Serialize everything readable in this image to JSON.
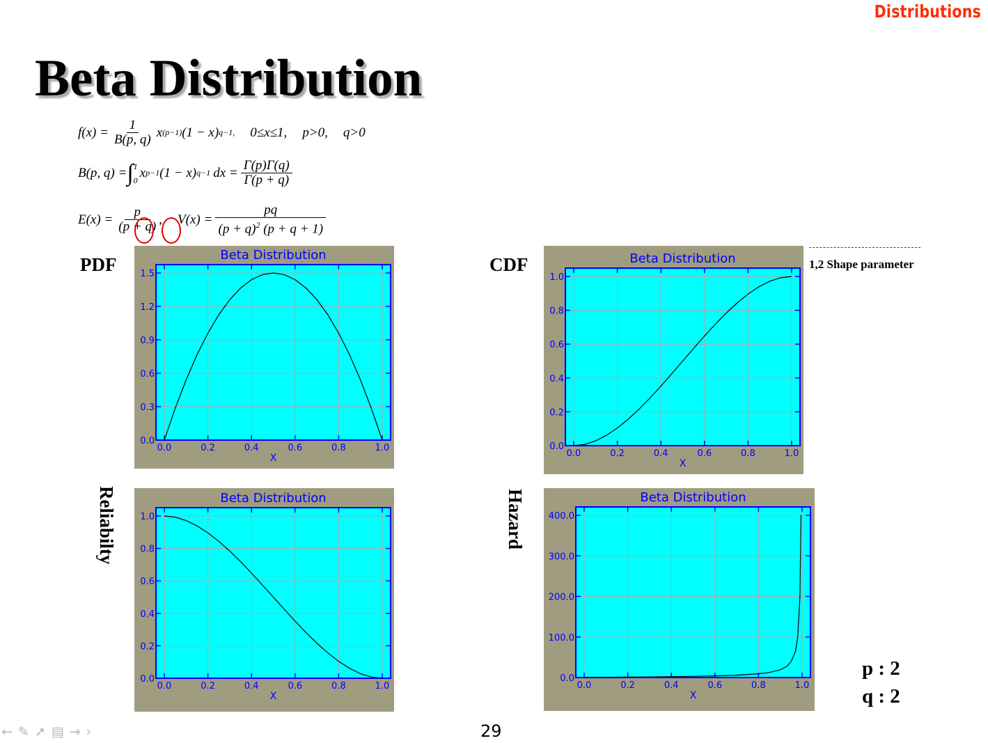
{
  "header": {
    "tag": "Distributions"
  },
  "slide": {
    "title": "Beta Distribution",
    "page_number": "29",
    "shape_note": "1,2 Shape parameter",
    "params": {
      "p": "p : 2",
      "q": "q : 2"
    },
    "nav_icons": [
      "arrow-left-icon",
      "pen-icon",
      "pointer-icon",
      "page-icon",
      "arrow-right-icon",
      "chevron-right-icon"
    ]
  },
  "formulas": {
    "f_lhs": "f(x) =",
    "f_num": "1",
    "f_den": "B(p, q)",
    "f_body": "x",
    "f_exp1": "(p−1)",
    "f_mid": "(1 − x)",
    "f_exp2": "q−1,",
    "f_cond1": "0≤x≤1,",
    "f_cond2": "p>0,",
    "f_cond3": "q>0",
    "b_lhs": "B(p, q) =",
    "b_int": "∫",
    "b_upper": "1",
    "b_lower": "0",
    "b_x": "x",
    "b_exp1": "p−1",
    "b_mid": "(1 − x)",
    "b_exp2": "q−1",
    "b_dx": "dx =",
    "b_num": "Γ(p)Γ(q)",
    "b_den": "Γ(p + q)",
    "e_lhs": "E(x) =",
    "e_num": "p",
    "e_den": "(p + q)",
    "e_comma": ",",
    "v_lhs": "V(x) =",
    "v_num": "pq",
    "v_den_a": "(p + q)",
    "v_den_exp": "2",
    "v_den_b": "(p + q + 1)"
  },
  "chart_labels": {
    "pdf": "PDF",
    "cdf": "CDF",
    "reliability": "Reliabilty",
    "hazard": "Hazard"
  },
  "colors": {
    "plot_bg": "#00ffff",
    "frame_bg": "#a09c80",
    "axis": "#0000ff",
    "grid": "#a9a9a9",
    "line": "#000000",
    "header": "#ff2a00",
    "highlight": "#e00000"
  },
  "chart_data": [
    {
      "id": "pdf",
      "type": "line",
      "title": "Beta Distribution",
      "xlabel": "X",
      "ylabel": "",
      "xlim": [
        0,
        1
      ],
      "ylim": [
        0,
        1.5
      ],
      "grid": true,
      "xticks": [
        "0.0",
        "0.2",
        "0.4",
        "0.6",
        "0.8",
        "1.0"
      ],
      "yticks": [
        "0.0",
        "0.3",
        "0.6",
        "0.9",
        "1.2",
        "1.5"
      ],
      "series": [
        {
          "x": [
            0,
            0.05,
            0.1,
            0.15,
            0.2,
            0.25,
            0.3,
            0.35,
            0.4,
            0.45,
            0.5,
            0.55,
            0.6,
            0.65,
            0.7,
            0.75,
            0.8,
            0.85,
            0.9,
            0.95,
            1.0
          ],
          "y": [
            0,
            0.285,
            0.54,
            0.765,
            0.96,
            1.125,
            1.26,
            1.365,
            1.44,
            1.485,
            1.5,
            1.485,
            1.44,
            1.365,
            1.26,
            1.125,
            0.96,
            0.765,
            0.54,
            0.285,
            0
          ]
        }
      ]
    },
    {
      "id": "cdf",
      "type": "line",
      "title": "Beta Distribution",
      "xlabel": "X",
      "ylabel": "",
      "xlim": [
        0,
        1
      ],
      "ylim": [
        0,
        1.0
      ],
      "grid": true,
      "xticks": [
        "0.0",
        "0.2",
        "0.4",
        "0.6",
        "0.8",
        "1.0"
      ],
      "yticks": [
        "0.0",
        "0.2",
        "0.4",
        "0.6",
        "0.8",
        "1.0"
      ],
      "series": [
        {
          "x": [
            0,
            0.05,
            0.1,
            0.15,
            0.2,
            0.25,
            0.3,
            0.35,
            0.4,
            0.45,
            0.5,
            0.55,
            0.6,
            0.65,
            0.7,
            0.75,
            0.8,
            0.85,
            0.9,
            0.95,
            1.0
          ],
          "y": [
            0,
            0.00725,
            0.028,
            0.06075,
            0.104,
            0.15625,
            0.216,
            0.28175,
            0.352,
            0.42525,
            0.5,
            0.57475,
            0.648,
            0.71825,
            0.784,
            0.84375,
            0.896,
            0.93925,
            0.972,
            0.99275,
            1.0
          ]
        }
      ]
    },
    {
      "id": "reliability",
      "type": "line",
      "title": "Beta Distribution",
      "xlabel": "X",
      "ylabel": "",
      "xlim": [
        0,
        1
      ],
      "ylim": [
        0,
        1.0
      ],
      "grid": true,
      "xticks": [
        "0.0",
        "0.2",
        "0.4",
        "0.6",
        "0.8",
        "1.0"
      ],
      "yticks": [
        "0.0",
        "0.2",
        "0.4",
        "0.6",
        "0.8",
        "1.0"
      ],
      "series": [
        {
          "x": [
            0,
            0.05,
            0.1,
            0.15,
            0.2,
            0.25,
            0.3,
            0.35,
            0.4,
            0.45,
            0.5,
            0.55,
            0.6,
            0.65,
            0.7,
            0.75,
            0.8,
            0.85,
            0.9,
            0.95,
            1.0
          ],
          "y": [
            1.0,
            0.99275,
            0.972,
            0.93925,
            0.896,
            0.84375,
            0.784,
            0.71825,
            0.648,
            0.57475,
            0.5,
            0.42525,
            0.352,
            0.28175,
            0.216,
            0.15625,
            0.104,
            0.06075,
            0.028,
            0.00725,
            0
          ]
        }
      ]
    },
    {
      "id": "hazard",
      "type": "line",
      "title": "Beta Distribution",
      "xlabel": "X",
      "ylabel": "",
      "xlim": [
        0,
        1
      ],
      "ylim": [
        0,
        400
      ],
      "grid": true,
      "xticks": [
        "0.0",
        "0.2",
        "0.4",
        "0.6",
        "0.8",
        "1.0"
      ],
      "yticks": [
        "0.0",
        "100.0",
        "200.0",
        "300.0",
        "400.0"
      ],
      "series": [
        {
          "x": [
            0,
            0.1,
            0.2,
            0.3,
            0.4,
            0.5,
            0.6,
            0.7,
            0.8,
            0.85,
            0.9,
            0.93,
            0.95,
            0.97,
            0.98,
            0.99,
            0.995,
            0.998
          ],
          "y": [
            0,
            0.56,
            1.07,
            1.61,
            2.22,
            3.0,
            4.09,
            5.83,
            9.23,
            12.6,
            19.3,
            27.4,
            39.3,
            65.0,
            99.0,
            199.0,
            399.0,
            400.0
          ]
        }
      ]
    }
  ]
}
